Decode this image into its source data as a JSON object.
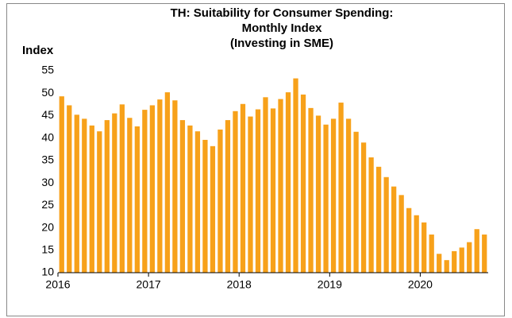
{
  "chart_data": {
    "type": "bar",
    "title": [
      "TH: Suitability for Consumer Spending:",
      "Monthly Index",
      "(Investing in SME)"
    ],
    "y_label": "Index",
    "categories": [
      "2016",
      null,
      null,
      null,
      null,
      null,
      null,
      null,
      null,
      null,
      null,
      null,
      "2017",
      null,
      null,
      null,
      null,
      null,
      null,
      null,
      null,
      null,
      null,
      null,
      "2018",
      null,
      null,
      null,
      null,
      null,
      null,
      null,
      null,
      null,
      null,
      null,
      "2019",
      null,
      null,
      null,
      null,
      null,
      null,
      null,
      null,
      null,
      null,
      null,
      "2020",
      null,
      null,
      null,
      null,
      null,
      null,
      null,
      null
    ],
    "values": [
      49.3,
      47.3,
      45.2,
      44.3,
      42.8,
      41.5,
      44,
      45.5,
      47.5,
      44.5,
      42.6,
      46.3,
      47.3,
      48.6,
      50.2,
      48.4,
      44,
      42.8,
      41.5,
      39.6,
      38.2,
      41.9,
      44,
      46,
      47.6,
      44.8,
      46.4,
      49.1,
      46.6,
      48.7,
      50.2,
      53.3,
      49.7,
      46.7,
      45,
      43,
      44.3,
      47.9,
      44.3,
      41.4,
      39,
      35.7,
      33.6,
      31.3,
      29.2,
      27.3,
      24.4,
      22.8,
      21.2,
      18.5,
      14.2,
      12.8,
      14.8,
      15.6,
      16.8,
      19.7,
      18.5
    ],
    "color": "#f7a11a",
    "ylim": [
      10,
      55
    ],
    "yticks": [
      10,
      15,
      20,
      25,
      30,
      35,
      40,
      45,
      50,
      55
    ],
    "grid": false
  }
}
